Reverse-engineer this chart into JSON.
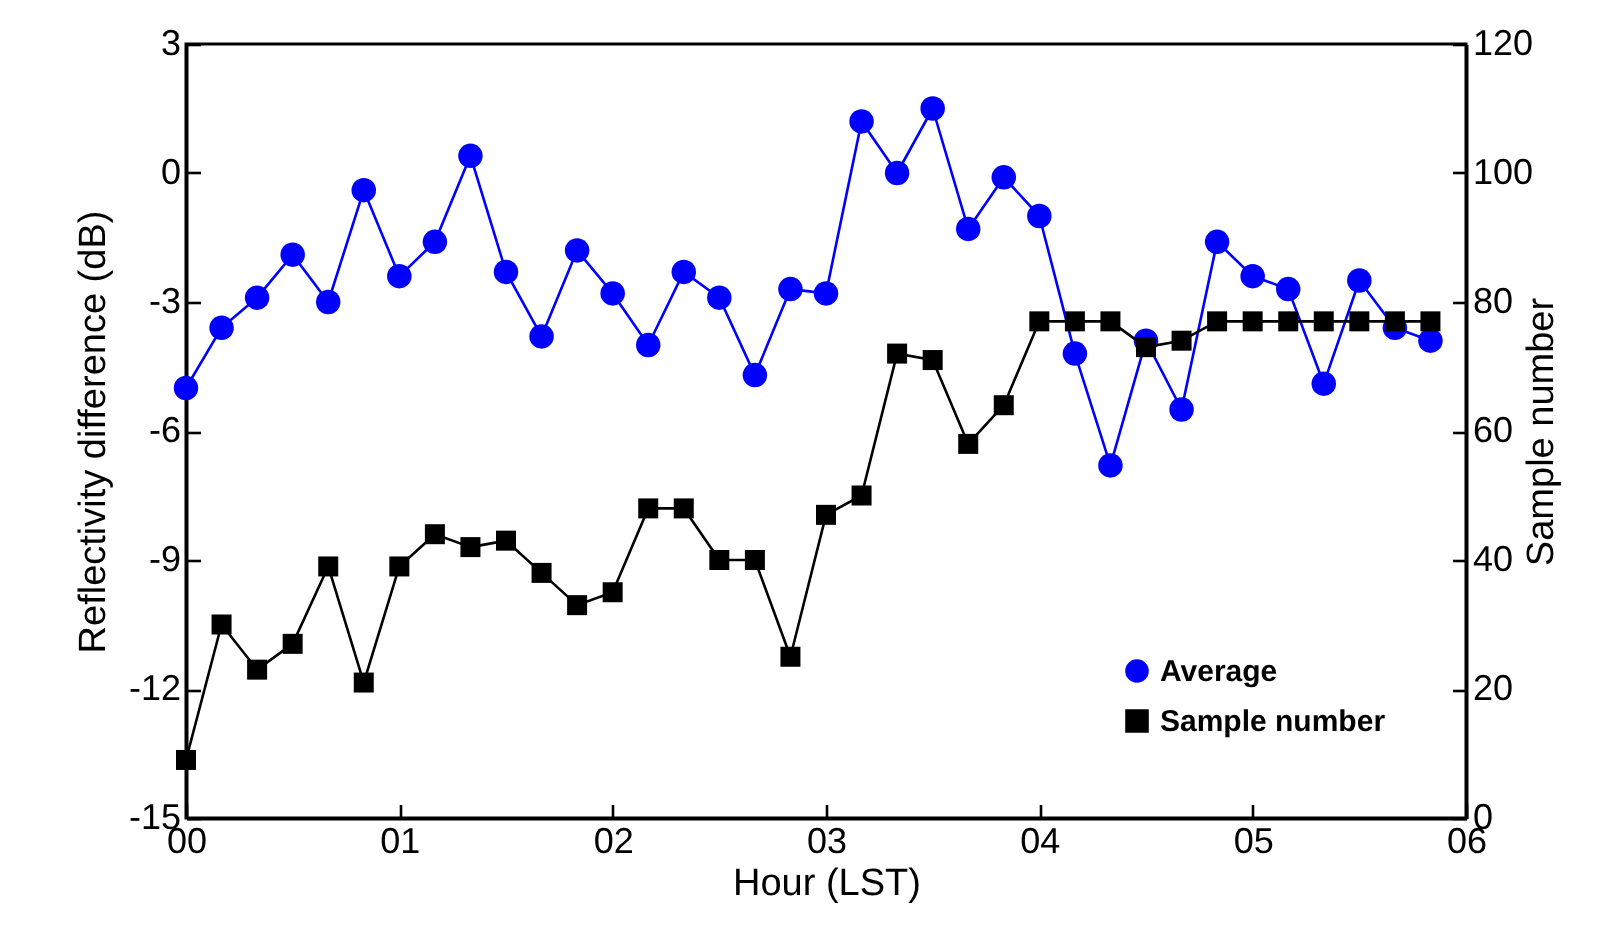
{
  "chart_data": {
    "type": "line",
    "xlabel": "Hour (LST)",
    "ylabel": "Reflectivity difference (dB)",
    "y2label": "Sample number",
    "x": [
      0,
      0.1667,
      0.3333,
      0.5,
      0.6667,
      0.8333,
      1,
      1.1667,
      1.3333,
      1.5,
      1.6667,
      1.8333,
      2,
      2.1667,
      2.3333,
      2.5,
      2.6667,
      2.8333,
      3,
      3.1667,
      3.3333,
      3.5,
      3.6667,
      3.8333,
      4,
      4.1667,
      4.3333,
      4.5,
      4.6667,
      4.8333,
      5,
      5.1667,
      5.3333,
      5.5,
      5.6667,
      5.8333
    ],
    "xlim": [
      0,
      6
    ],
    "xticks": [
      {
        "value": 0,
        "label": "00"
      },
      {
        "value": 1,
        "label": "01"
      },
      {
        "value": 2,
        "label": "02"
      },
      {
        "value": 3,
        "label": "03"
      },
      {
        "value": 4,
        "label": "04"
      },
      {
        "value": 5,
        "label": "05"
      },
      {
        "value": 6,
        "label": "06"
      }
    ],
    "ylim": [
      -15,
      3
    ],
    "yticks": [
      -15,
      -12,
      -9,
      -6,
      -3,
      0,
      3
    ],
    "y2lim": [
      0,
      120
    ],
    "y2ticks": [
      0,
      20,
      40,
      60,
      80,
      100,
      120
    ],
    "series": [
      {
        "name": "Average",
        "color": "#0000ff",
        "marker": "circle",
        "values": [
          -5.0,
          -3.6,
          -2.9,
          -1.9,
          -3.0,
          -0.4,
          -2.4,
          -1.6,
          0.4,
          -2.3,
          -3.8,
          -1.8,
          -2.8,
          -4.0,
          -2.3,
          -2.9,
          -4.7,
          -2.7,
          -2.8,
          1.2,
          0.0,
          1.5,
          -1.3,
          -0.1,
          -1.0,
          -4.2,
          -6.8,
          -3.9,
          -5.5,
          -1.6,
          -2.4,
          -2.7,
          -4.9,
          -2.5,
          -3.6,
          -3.9
        ]
      },
      {
        "name": "Sample number",
        "color": "#000000",
        "marker": "square",
        "axis": "y2",
        "values": [
          9,
          30,
          23,
          27,
          39,
          21,
          39,
          44,
          42,
          43,
          38,
          33,
          35,
          48,
          48,
          40,
          40,
          25,
          47,
          50,
          72,
          71,
          58,
          64,
          77,
          77,
          77,
          73,
          74,
          77,
          77,
          77,
          77,
          77,
          77,
          77
        ]
      }
    ],
    "legend": "bottom right",
    "grid": false
  }
}
